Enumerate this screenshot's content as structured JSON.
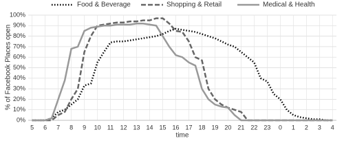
{
  "chart_data": {
    "type": "line",
    "x_label": "time",
    "y_label": "% of Facebook Places open",
    "x": [
      5,
      5.5,
      6,
      6.5,
      7,
      7.5,
      8,
      8.5,
      9,
      9.5,
      10,
      10.5,
      11,
      11.5,
      12,
      12.5,
      13,
      13.5,
      14,
      14.5,
      15,
      15.5,
      16,
      16.5,
      17,
      17.5,
      18,
      18.5,
      19,
      19.5,
      20,
      20.5,
      21,
      21.5,
      22,
      22.5,
      23,
      23.5,
      24,
      24.5,
      25,
      25.5,
      26,
      26.5,
      27,
      27.5,
      28
    ],
    "series": [
      {
        "name": "Food & Beverage",
        "color": "#000000",
        "dash": "dotted",
        "values": [
          0,
          0,
          0,
          2,
          8,
          10,
          15,
          20,
          33,
          35,
          55,
          65,
          74,
          75,
          75,
          76,
          77,
          78,
          79,
          80,
          82,
          85,
          87,
          86,
          85,
          84,
          82,
          80,
          78,
          75,
          72,
          70,
          65,
          60,
          55,
          40,
          37,
          25,
          20,
          10,
          5,
          3,
          2,
          1,
          1,
          0,
          0
        ]
      },
      {
        "name": "Shopping & Retail",
        "color": "#666666",
        "dash": "dashed",
        "values": [
          0,
          0,
          0,
          0,
          5,
          8,
          20,
          30,
          65,
          80,
          90,
          91,
          92,
          93,
          93,
          94,
          94,
          95,
          95,
          97,
          97,
          92,
          85,
          84,
          75,
          60,
          57,
          30,
          20,
          15,
          12,
          10,
          8,
          0,
          0,
          0,
          0,
          0,
          0,
          0,
          0,
          0,
          0,
          0,
          0,
          0,
          0
        ]
      },
      {
        "name": "Medical & Health",
        "color": "#999999",
        "dash": "solid",
        "values": [
          0,
          0,
          0,
          2,
          20,
          38,
          68,
          70,
          85,
          88,
          89,
          90,
          90,
          91,
          91,
          91,
          92,
          92,
          91,
          90,
          80,
          70,
          62,
          60,
          55,
          52,
          30,
          20,
          15,
          13,
          12,
          5,
          0,
          0,
          0,
          0,
          0,
          0,
          0,
          0,
          0,
          0,
          0,
          0,
          0,
          0,
          0
        ]
      }
    ],
    "xlim": [
      4.7,
      28.3
    ],
    "xticks": [
      5,
      6,
      7,
      8,
      9,
      10,
      11,
      12,
      13,
      14,
      15,
      16,
      17,
      18,
      19,
      20,
      21,
      22,
      23,
      {
        "value": 24,
        "label": "0"
      },
      {
        "value": 25,
        "label": "1"
      },
      {
        "value": 26,
        "label": "2"
      },
      {
        "value": 27,
        "label": "3"
      },
      {
        "value": 28,
        "label": "4"
      }
    ],
    "ylim": [
      0,
      100
    ],
    "yticks": [
      {
        "value": 0,
        "label": "0%"
      },
      {
        "value": 10,
        "label": "10%"
      },
      {
        "value": 20,
        "label": "20%"
      },
      {
        "value": 30,
        "label": "30%"
      },
      {
        "value": 40,
        "label": "40%"
      },
      {
        "value": 50,
        "label": "50%"
      },
      {
        "value": 60,
        "label": "60%"
      },
      {
        "value": 70,
        "label": "70%"
      },
      {
        "value": 80,
        "label": "80%"
      },
      {
        "value": 90,
        "label": "90%"
      },
      {
        "value": 100,
        "label": "100%"
      }
    ],
    "grid": true,
    "legend": "top"
  }
}
